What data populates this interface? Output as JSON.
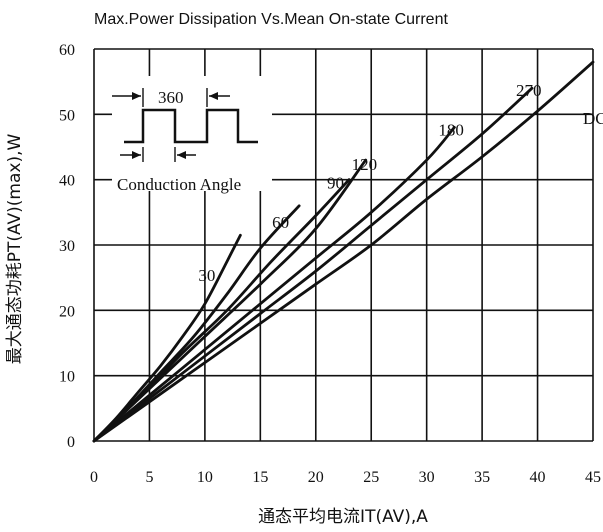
{
  "chart_data": {
    "type": "line",
    "title": "Max.Power Dissipation Vs.Mean On-state Current",
    "ylabel": "最大通态功耗PT(AV)(max),W",
    "xlabel": "通态平均电流IT(AV),A",
    "xlim": [
      0,
      45
    ],
    "ylim": [
      0,
      60
    ],
    "x_ticks": [
      "0",
      "5",
      "10",
      "15",
      "20",
      "25",
      "30",
      "35",
      "40",
      "45"
    ],
    "y_ticks": [
      "0",
      "10",
      "20",
      "30",
      "40",
      "50",
      "60"
    ],
    "grid": true,
    "series": [
      {
        "name": "30",
        "points": [
          [
            0,
            0
          ],
          [
            2,
            3.5
          ],
          [
            4,
            7.5
          ],
          [
            6,
            11.5
          ],
          [
            8,
            16
          ],
          [
            10,
            21
          ],
          [
            12,
            27.5
          ],
          [
            13.2,
            31.5
          ]
        ]
      },
      {
        "name": "60",
        "points": [
          [
            0,
            0
          ],
          [
            3,
            5
          ],
          [
            6,
            10.5
          ],
          [
            9,
            16
          ],
          [
            12,
            22.5
          ],
          [
            15,
            29.5
          ],
          [
            18.5,
            36
          ]
        ]
      },
      {
        "name": "90",
        "points": [
          [
            0,
            0
          ],
          [
            4,
            6.5
          ],
          [
            8,
            13.5
          ],
          [
            12,
            20
          ],
          [
            16,
            27.5
          ],
          [
            20,
            34.5
          ],
          [
            23,
            40
          ]
        ]
      },
      {
        "name": "120",
        "points": [
          [
            0,
            0
          ],
          [
            5,
            8
          ],
          [
            10,
            16
          ],
          [
            15,
            24
          ],
          [
            20,
            32.5
          ],
          [
            24.5,
            43
          ]
        ]
      },
      {
        "name": "180",
        "points": [
          [
            0,
            0
          ],
          [
            5,
            7
          ],
          [
            10,
            14
          ],
          [
            15,
            21
          ],
          [
            20,
            28
          ],
          [
            25,
            35
          ],
          [
            30,
            43
          ],
          [
            32.5,
            48
          ]
        ]
      },
      {
        "name": "270",
        "points": [
          [
            0,
            0
          ],
          [
            5,
            6.5
          ],
          [
            10,
            13
          ],
          [
            15,
            19.5
          ],
          [
            20,
            26
          ],
          [
            25,
            33
          ],
          [
            30,
            40
          ],
          [
            35,
            47
          ],
          [
            39.5,
            54
          ]
        ]
      },
      {
        "name": "DC",
        "points": [
          [
            0,
            0
          ],
          [
            5,
            6
          ],
          [
            10,
            12
          ],
          [
            15,
            18
          ],
          [
            20,
            24
          ],
          [
            25,
            30
          ],
          [
            30,
            37
          ],
          [
            35,
            43.5
          ],
          [
            40,
            50.5
          ],
          [
            45,
            58
          ]
        ]
      }
    ],
    "annotations": [
      "Conduction Angle",
      "360"
    ]
  }
}
